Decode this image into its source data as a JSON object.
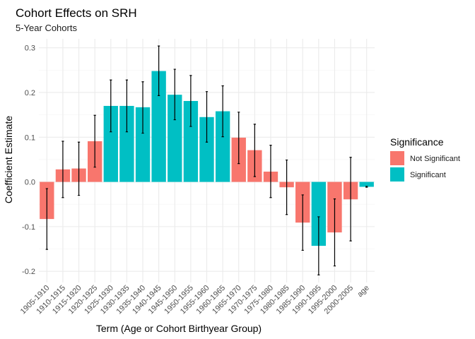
{
  "chart_data": {
    "type": "bar",
    "title": "Cohort Effects on SRH",
    "subtitle": "5-Year Cohorts",
    "xlabel": "Term (Age or Cohort Birthyear Group)",
    "ylabel": "Coefficient Estimate",
    "ylim": [
      -0.225,
      0.32
    ],
    "yticks": [
      -0.2,
      -0.1,
      0.0,
      0.1,
      0.2,
      0.3
    ],
    "ytick_labels": [
      "-0.2",
      "-0.1",
      "0.0",
      "0.1",
      "0.2",
      "0.3"
    ],
    "grid": true,
    "legend": {
      "title": "Significance",
      "placement": "right",
      "entries": [
        {
          "label": "Not Significant",
          "color": "#F8766D"
        },
        {
          "label": "Significant",
          "color": "#00BFC4"
        }
      ]
    },
    "categories": [
      "1905-1910",
      "1910-1915",
      "1915-1920",
      "1920-1925",
      "1925-1930",
      "1930-1935",
      "1935-1940",
      "1940-1945",
      "1945-1950",
      "1950-1955",
      "1955-1960",
      "1960-1965",
      "1965-1970",
      "1970-1975",
      "1975-1980",
      "1980-1985",
      "1985-1990",
      "1990-1995",
      "1995-2000",
      "2000-2005",
      "age"
    ],
    "values": [
      -0.083,
      0.028,
      0.03,
      0.091,
      0.17,
      0.17,
      0.167,
      0.248,
      0.195,
      0.181,
      0.145,
      0.158,
      0.099,
      0.071,
      0.023,
      -0.012,
      -0.091,
      -0.143,
      -0.113,
      -0.039,
      -0.011
    ],
    "lower": [
      -0.151,
      -0.035,
      -0.03,
      0.033,
      0.112,
      0.112,
      0.109,
      0.193,
      0.139,
      0.124,
      0.089,
      0.101,
      0.041,
      0.012,
      -0.035,
      -0.073,
      -0.153,
      -0.208,
      -0.188,
      -0.132,
      -0.012
    ],
    "upper": [
      -0.015,
      0.091,
      0.089,
      0.149,
      0.228,
      0.228,
      0.224,
      0.304,
      0.252,
      0.238,
      0.202,
      0.215,
      0.156,
      0.129,
      0.082,
      0.049,
      -0.029,
      -0.078,
      -0.038,
      0.055,
      -0.01
    ],
    "significance": [
      "Not Significant",
      "Not Significant",
      "Not Significant",
      "Not Significant",
      "Significant",
      "Significant",
      "Significant",
      "Significant",
      "Significant",
      "Significant",
      "Significant",
      "Significant",
      "Not Significant",
      "Not Significant",
      "Not Significant",
      "Not Significant",
      "Not Significant",
      "Significant",
      "Not Significant",
      "Not Significant",
      "Significant"
    ]
  }
}
